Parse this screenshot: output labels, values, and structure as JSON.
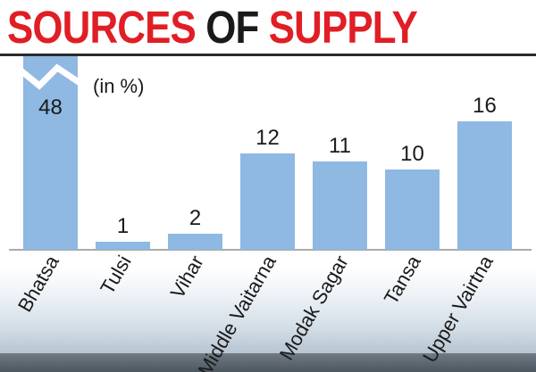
{
  "header": {
    "title_part1": "SOURCES",
    "title_part2": "OF",
    "title_part3": "SUPPLY",
    "accent_color": "#e01e25",
    "dark_color": "#1a1a1a"
  },
  "chart_data": {
    "type": "bar",
    "title": "SOURCES OF SUPPLY",
    "unit_label": "(in %)",
    "categories": [
      "Bhatsa",
      "Tulsi",
      "Vihar",
      "Middle Vaitarna",
      "Modak Sagar",
      "Tansa",
      "Upper Vairtna"
    ],
    "values": [
      48,
      1,
      2,
      12,
      11,
      10,
      16
    ],
    "broken_axis_categories": [
      "Bhatsa"
    ],
    "bar_color": "#8fb8e3",
    "grid": false,
    "legend": "none"
  }
}
